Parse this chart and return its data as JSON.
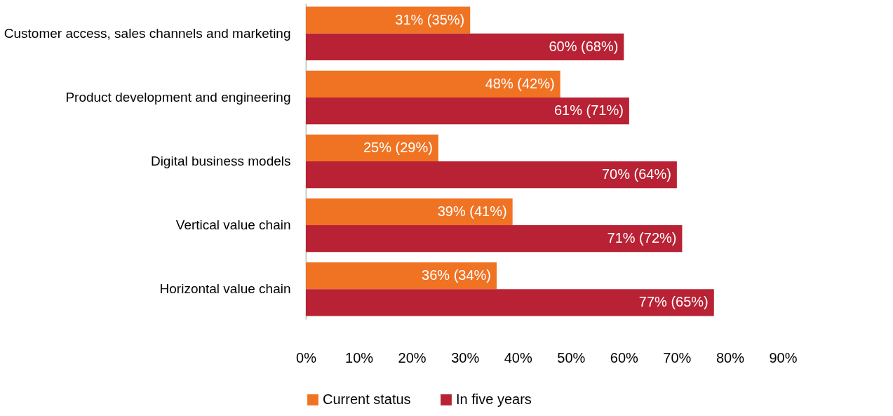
{
  "chart_data": {
    "type": "bar",
    "orientation": "horizontal",
    "categories": [
      "Customer access, sales channels and marketing",
      "Product development and engineering",
      "Digital business models",
      "Vertical value chain",
      "Horizontal value chain"
    ],
    "series": [
      {
        "name": "Current status",
        "color": "#f07323",
        "values": [
          31,
          48,
          25,
          39,
          36
        ],
        "value_labels": [
          "31% (35%)",
          "48% (42%)",
          "25% (29%)",
          "39% (41%)",
          "36% (34%)"
        ]
      },
      {
        "name": "In five years",
        "color": "#b82234",
        "values": [
          60,
          61,
          70,
          71,
          77
        ],
        "value_labels": [
          "60% (68%)",
          "61% (71%)",
          "70% (64%)",
          "71% (72%)",
          "77% (65%)"
        ]
      }
    ],
    "xlim": [
      0,
      90
    ],
    "xticks": [
      {
        "value": 0,
        "label": "0%"
      },
      {
        "value": 10,
        "label": "10%"
      },
      {
        "value": 20,
        "label": "20%"
      },
      {
        "value": 30,
        "label": "30%"
      },
      {
        "value": 40,
        "label": "40%"
      },
      {
        "value": 50,
        "label": "50%"
      },
      {
        "value": 60,
        "label": "60%"
      },
      {
        "value": 70,
        "label": "70%"
      },
      {
        "value": 80,
        "label": "80%"
      },
      {
        "value": 90,
        "label": "90%"
      }
    ],
    "grid": false,
    "legend": "bottom"
  }
}
